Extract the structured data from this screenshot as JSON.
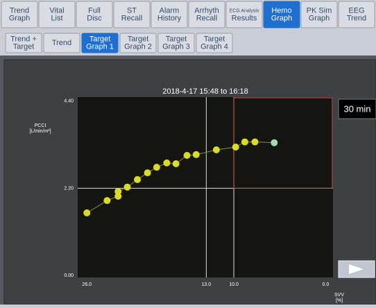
{
  "tabs": [
    {
      "lines": [
        "Trend",
        "Graph"
      ],
      "active": false
    },
    {
      "lines": [
        "Vital",
        "List"
      ],
      "active": false
    },
    {
      "lines": [
        "Full",
        "Disc"
      ],
      "active": false
    },
    {
      "lines": [
        "ST",
        "Recall"
      ],
      "active": false
    },
    {
      "lines": [
        "Alarm",
        "History"
      ],
      "active": false
    },
    {
      "lines": [
        "Arrhyth",
        "Recall"
      ],
      "active": false
    },
    {
      "lines": [
        "ECG Analysis",
        "Results"
      ],
      "active": false
    },
    {
      "lines": [
        "Hemo",
        "Graph"
      ],
      "active": true
    },
    {
      "lines": [
        "PK Sim",
        "Graph"
      ],
      "active": false
    },
    {
      "lines": [
        "EEG",
        "Trend"
      ],
      "active": false
    }
  ],
  "subtabs": [
    {
      "lines": [
        "Trend +",
        "Target"
      ],
      "active": false
    },
    {
      "lines": [
        "Trend"
      ],
      "active": false
    },
    {
      "lines": [
        "Target",
        "Graph 1"
      ],
      "active": true
    },
    {
      "lines": [
        "Target",
        "Graph 2"
      ],
      "active": false
    },
    {
      "lines": [
        "Target",
        "Graph 3"
      ],
      "active": false
    },
    {
      "lines": [
        "Target",
        "Graph 4"
      ],
      "active": false
    }
  ],
  "time_span": "30 min",
  "chart_data": {
    "type": "scatter",
    "title": "2018-4-17 15:48 to 16:18",
    "y_label_lines": [
      "PCCI",
      "[L/min/m²]"
    ],
    "x_label_lines": [
      "SVV",
      "[%]"
    ],
    "series": [
      {
        "color": "#dcdc1e",
        "highlight_color": "#9fdcb0",
        "x": [
          26.0,
          23.8,
          22.6,
          22.6,
          21.6,
          20.5,
          19.4,
          18.4,
          17.3,
          16.3,
          15.1,
          14.1,
          11.9,
          9.8,
          8.8,
          7.7,
          5.6
        ],
        "values": [
          1.58,
          1.89,
          2.0,
          2.12,
          2.23,
          2.42,
          2.59,
          2.73,
          2.84,
          2.82,
          3.03,
          3.05,
          3.17,
          3.24,
          3.37,
          3.37,
          3.35
        ]
      }
    ],
    "xlim": [
      27.0,
      -0.8
    ],
    "ylim": [
      -0.05,
      4.5
    ],
    "xticks": [
      {
        "value": 26,
        "label": "26.0"
      },
      {
        "value": 13,
        "label": "13.0"
      },
      {
        "value": 10,
        "label": "10.0"
      },
      {
        "value": 0,
        "label": "0.0"
      }
    ],
    "yticks": [
      {
        "value": 4.4,
        "label": "4.40"
      },
      {
        "value": 2.2,
        "label": "2.20"
      },
      {
        "value": 0,
        "label": "0.00"
      }
    ]
  }
}
